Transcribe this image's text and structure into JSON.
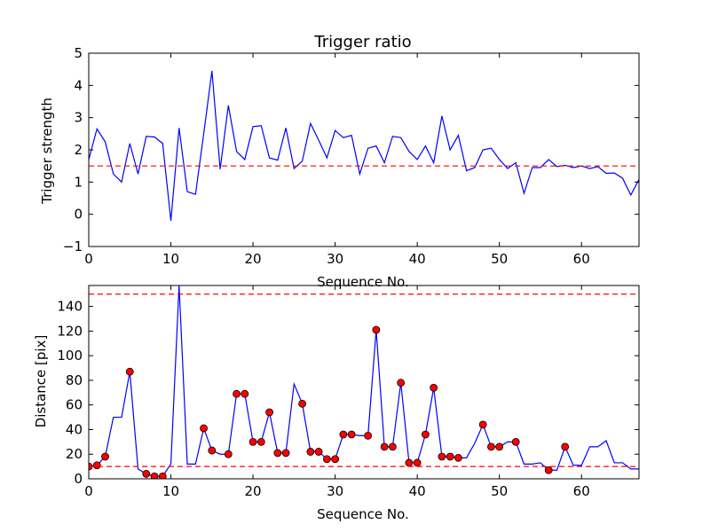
{
  "chart_data": [
    {
      "type": "line",
      "title": "Trigger ratio",
      "xlabel": "Sequence No.",
      "ylabel": "Trigger strength",
      "xlim": [
        0,
        67
      ],
      "ylim": [
        -1,
        5
      ],
      "xticks": [
        0,
        10,
        20,
        30,
        40,
        50,
        60
      ],
      "yticks": [
        -1,
        0,
        1,
        2,
        3,
        4,
        5
      ],
      "grid": false,
      "series": [
        {
          "color": "#0000ff",
          "x": [
            0,
            1,
            2,
            3,
            4,
            5,
            6,
            7,
            8,
            9,
            10,
            11,
            12,
            13,
            14,
            15,
            16,
            17,
            18,
            19,
            20,
            21,
            22,
            23,
            24,
            25,
            26,
            27,
            28,
            29,
            30,
            31,
            32,
            33,
            34,
            35,
            36,
            37,
            38,
            39,
            40,
            41,
            42,
            43,
            44,
            45,
            46,
            47,
            48,
            49,
            50,
            51,
            52,
            53,
            54,
            55,
            56,
            57,
            58,
            59,
            60,
            61,
            62,
            63,
            64,
            65,
            66,
            67
          ],
          "y": [
            1.7,
            2.65,
            2.25,
            1.25,
            1.0,
            2.2,
            1.25,
            2.42,
            2.4,
            2.2,
            -0.2,
            2.68,
            0.7,
            0.62,
            2.5,
            4.45,
            1.4,
            3.38,
            1.95,
            1.7,
            2.72,
            2.75,
            1.75,
            1.68,
            2.68,
            1.42,
            1.65,
            2.82,
            2.3,
            1.75,
            2.6,
            2.38,
            2.45,
            1.25,
            2.05,
            2.12,
            1.6,
            2.42,
            2.38,
            1.95,
            1.7,
            2.12,
            1.6,
            3.05,
            2.0,
            2.45,
            1.35,
            1.45,
            2.0,
            2.05,
            1.7,
            1.42,
            1.6,
            0.65,
            1.45,
            1.45,
            1.7,
            1.48,
            1.52,
            1.45,
            1.5,
            1.42,
            1.48,
            1.27,
            1.28,
            1.12,
            0.6,
            1.08
          ]
        }
      ],
      "reference_lines": [
        {
          "axis": "y",
          "value": 1.5,
          "color": "#ff0000",
          "style": "dashed"
        }
      ]
    },
    {
      "type": "line",
      "title": "",
      "xlabel": "Sequence No.",
      "ylabel": "Distance [pix]",
      "xlim": [
        0,
        67
      ],
      "ylim": [
        0,
        157
      ],
      "xticks": [
        0,
        10,
        20,
        30,
        40,
        50,
        60
      ],
      "yticks": [
        0,
        20,
        40,
        60,
        80,
        100,
        120,
        140
      ],
      "grid": false,
      "series": [
        {
          "color": "#0000ff",
          "x": [
            0,
            1,
            2,
            3,
            4,
            5,
            6,
            7,
            8,
            9,
            10,
            11,
            12,
            13,
            14,
            15,
            16,
            17,
            18,
            19,
            20,
            21,
            22,
            23,
            24,
            25,
            26,
            27,
            28,
            29,
            30,
            31,
            32,
            33,
            34,
            35,
            36,
            37,
            38,
            39,
            40,
            41,
            42,
            43,
            44,
            45,
            46,
            47,
            48,
            49,
            50,
            51,
            52,
            53,
            54,
            55,
            56,
            57,
            58,
            59,
            60,
            61,
            62,
            63,
            64,
            65,
            66,
            67
          ],
          "y": [
            10,
            11,
            18,
            50,
            50,
            87,
            8,
            4,
            2,
            2,
            12,
            157,
            12,
            12,
            41,
            23,
            20,
            20,
            69,
            69,
            30,
            30,
            54,
            21,
            21,
            77,
            61,
            22,
            22,
            16,
            16,
            36,
            36,
            35,
            35,
            121,
            26,
            26,
            78,
            13,
            13,
            36,
            74,
            18,
            18,
            17,
            17,
            29,
            44,
            26,
            26,
            30,
            30,
            12,
            12,
            13,
            7,
            7,
            26,
            11,
            11,
            26,
            26,
            31,
            13,
            13,
            8,
            8
          ]
        },
        {
          "type": "scatter",
          "color": "#ff0000",
          "x": [
            0,
            1,
            2,
            5,
            7,
            8,
            9,
            14,
            15,
            17,
            18,
            19,
            20,
            21,
            22,
            23,
            24,
            26,
            27,
            28,
            29,
            30,
            31,
            32,
            34,
            35,
            36,
            37,
            38,
            39,
            40,
            41,
            42,
            43,
            44,
            45,
            48,
            49,
            50,
            52,
            56,
            58
          ],
          "y": [
            10,
            11,
            18,
            87,
            4,
            2,
            2,
            41,
            23,
            20,
            69,
            69,
            30,
            30,
            54,
            21,
            21,
            61,
            22,
            22,
            16,
            16,
            36,
            36,
            35,
            121,
            26,
            26,
            78,
            13,
            13,
            36,
            74,
            18,
            18,
            17,
            44,
            26,
            26,
            30,
            7,
            26
          ]
        }
      ],
      "reference_lines": [
        {
          "axis": "y",
          "value": 150,
          "color": "#ff0000",
          "style": "dashed"
        },
        {
          "axis": "y",
          "value": 10,
          "color": "#ff0000",
          "style": "dashed"
        }
      ]
    }
  ]
}
